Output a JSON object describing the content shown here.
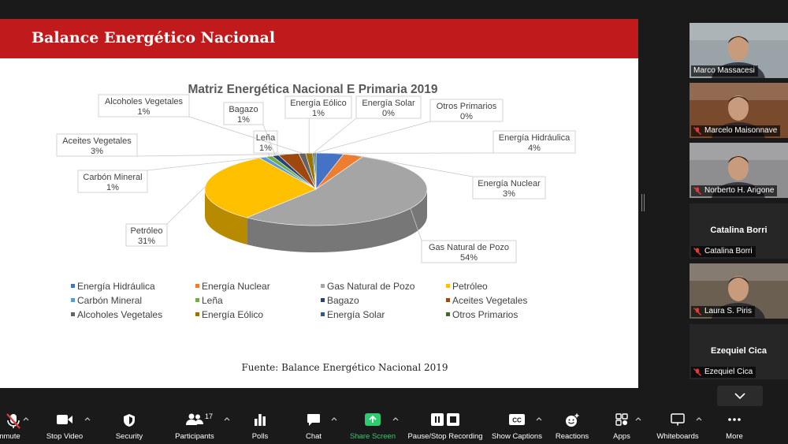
{
  "slide": {
    "title": "Balance Energético Nacional",
    "source": "Fuente: Balance Energético Nacional 2019"
  },
  "chart_data": {
    "type": "pie",
    "title": "Matriz Energética Nacional E Primaria 2019",
    "three_d": true,
    "legend_position": "bottom",
    "slices": [
      {
        "name": "Energía Hidráulica",
        "label": "Energía Hidráulica",
        "value_label": "4%",
        "value": 4,
        "color": "#4472c4"
      },
      {
        "name": "Energía Nuclear",
        "label": "Energía Nuclear",
        "value_label": "3%",
        "value": 3,
        "color": "#ed7d31"
      },
      {
        "name": "Gas Natural de Pozo",
        "label": "Gas Natural de Pozo",
        "value_label": "54%",
        "value": 54,
        "color": "#a5a5a5"
      },
      {
        "name": "Petróleo",
        "label": "Petróleo",
        "value_label": "31%",
        "value": 31,
        "color": "#ffc000"
      },
      {
        "name": "Carbón Mineral",
        "label": "Carbón Mineral",
        "value_label": "1%",
        "value": 1,
        "color": "#5b9bd5"
      },
      {
        "name": "Leña",
        "label": "Leña",
        "value_label": "1%",
        "value": 1,
        "color": "#70ad47"
      },
      {
        "name": "Bagazo",
        "label": "Bagazo",
        "value_label": "1%",
        "value": 1,
        "color": "#264478"
      },
      {
        "name": "Aceites Vegetales",
        "label": "Aceites Vegetales",
        "value_label": "3%",
        "value": 3,
        "color": "#9e480e"
      },
      {
        "name": "Alcoholes Vegetales",
        "label": "Alcoholes Vegetales",
        "value_label": "1%",
        "value": 1,
        "color": "#636363"
      },
      {
        "name": "Energía Eólico",
        "label": "Energía Eólico",
        "value_label": "1%",
        "value": 1,
        "color": "#997300"
      },
      {
        "name": "Energía Solar",
        "label": "Energía Solar",
        "value_label": "0%",
        "value": 0,
        "color": "#255e91"
      },
      {
        "name": "Otros Primarios",
        "label": "Otros Primarios",
        "value_label": "0%",
        "value": 0,
        "color": "#43682b"
      }
    ]
  },
  "participants": [
    {
      "name": "Marco Massacesi",
      "muted": false,
      "video": true,
      "active": true,
      "icon": "person-video"
    },
    {
      "name": "Marcelo Maisonnave",
      "muted": true,
      "video": true,
      "active": false,
      "icon": "person-video"
    },
    {
      "name": "Norberto H. Arigone",
      "muted": true,
      "video": true,
      "active": false,
      "icon": "person-video"
    },
    {
      "name": "Catalina Borri",
      "muted": true,
      "video": false,
      "active": false,
      "icon": "none"
    },
    {
      "name": "Laura S. Piris",
      "muted": true,
      "video": true,
      "active": false,
      "icon": "person-video"
    },
    {
      "name": "Ezequiel Cica",
      "muted": true,
      "video": false,
      "active": false,
      "icon": "none"
    }
  ],
  "toolbar": {
    "unmute": "Unmute",
    "stop_video": "Stop Video",
    "security": "Security",
    "participants": "Participants",
    "participants_count": "17",
    "polls": "Polls",
    "chat": "Chat",
    "share_screen": "Share Screen",
    "pause_recording": "Pause/Stop Recording",
    "show_captions": "Show Captions",
    "reactions": "Reactions",
    "apps": "Apps",
    "whiteboards": "Whiteboards",
    "more": "More",
    "captions_glyph": "CC",
    "colors": {
      "share_green": "#2ecc71",
      "muted_red": "#e03b3b"
    }
  }
}
